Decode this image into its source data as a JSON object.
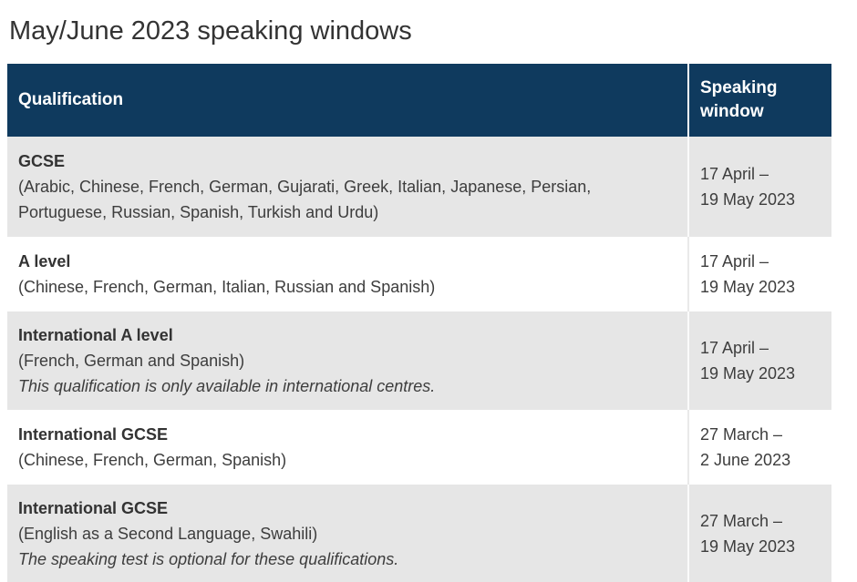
{
  "title": "May/June 2023 speaking windows",
  "table": {
    "columns": {
      "qualification": "Qualification",
      "speaking_window": "Speaking window"
    },
    "rows": [
      {
        "name": "GCSE",
        "languages": "(Arabic, Chinese, French, German, Gujarati, Greek, Italian, Japanese, Persian, Portuguese, Russian, Spanish, Turkish and Urdu)",
        "note": "",
        "window": "17 April –\n19 May 2023"
      },
      {
        "name": "A level",
        "languages": "(Chinese, French, German, Italian, Russian and Spanish)",
        "note": "",
        "window": "17 April –\n19 May 2023"
      },
      {
        "name": "International A level",
        "languages": "(French, German and Spanish)",
        "note": "This qualification is only available in international centres.",
        "window": "17 April –\n19 May 2023"
      },
      {
        "name": "International GCSE",
        "languages": "(Chinese, French, German, Spanish)",
        "note": "",
        "window": "27 March –\n2 June 2023"
      },
      {
        "name": "International GCSE",
        "languages": "(English as a Second Language, Swahili)",
        "note": "The speaking test is optional for these qualifications.",
        "window": "27 March –\n19 May 2023"
      }
    ]
  },
  "colors": {
    "header_bg": "#0f3a5e",
    "row_shade_bg": "#e6e6e6",
    "header_text": "#ffffff",
    "body_text": "#3d3d3d"
  }
}
